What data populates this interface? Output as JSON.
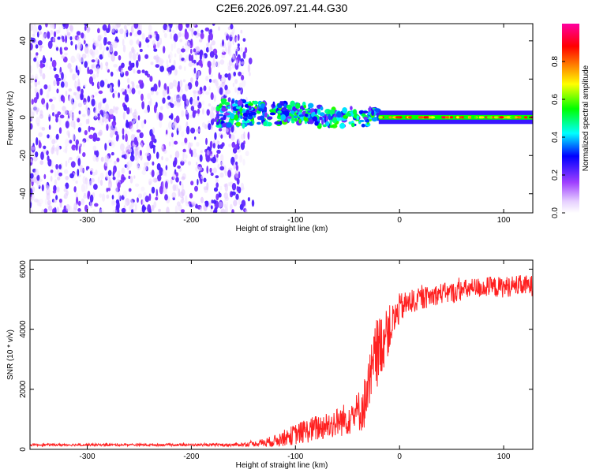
{
  "title": "C2E6.2026.097.21.44.G30",
  "chart_data": [
    {
      "type": "heatmap",
      "xlabel": "Height of straight line (km)",
      "ylabel": "Frequency (Hz)",
      "xlim": [
        -355,
        128
      ],
      "ylim": [
        -50,
        49
      ],
      "xticks": [
        -300,
        -200,
        -100,
        0,
        100
      ],
      "yticks": [
        -40,
        -20,
        0,
        20,
        40
      ],
      "colorbar": {
        "label": "Normalized spectral amplitude",
        "ticks": [
          "0.0",
          "0.2",
          "0.4",
          "0.6",
          "0.8"
        ],
        "range": [
          0,
          1
        ],
        "colors": [
          "#ffffff",
          "#e6d0ff",
          "#a040ff",
          "#0000ff",
          "#00ffff",
          "#00ff00",
          "#ffff00",
          "#ff8000",
          "#ff0000",
          "#ff00a0"
        ]
      },
      "regions": [
        {
          "name": "noise",
          "x_range": [
            -355,
            -140
          ],
          "freq_range": [
            -50,
            49
          ],
          "amplitude": 0.1
        },
        {
          "name": "signal-onset",
          "x_range": [
            -175,
            -20
          ],
          "freq_center": 2,
          "freq_halfwidth": 6,
          "amplitude": 0.45
        },
        {
          "name": "steady-signal",
          "x_range": [
            -20,
            128
          ],
          "freq_center": 0,
          "freq_halfwidth": 2,
          "amplitude": 0.9
        }
      ]
    },
    {
      "type": "line",
      "xlabel": "Height of straight line (km)",
      "ylabel": "SNR (10 * v/v)",
      "xlim": [
        -355,
        128
      ],
      "ylim": [
        0,
        6300
      ],
      "xticks": [
        -300,
        -200,
        -100,
        0,
        100
      ],
      "yticks": [
        0,
        2000,
        4000,
        6000
      ],
      "color": "#ff2020",
      "series": [
        {
          "name": "SNR",
          "x": [
            -355,
            -300,
            -250,
            -200,
            -160,
            -140,
            -120,
            -100,
            -80,
            -60,
            -45,
            -35,
            -28,
            -22,
            -15,
            -10,
            -5,
            0,
            10,
            20,
            30,
            40,
            50,
            60,
            70,
            80,
            90,
            100,
            110,
            120,
            128
          ],
          "y": [
            150,
            150,
            150,
            150,
            150,
            180,
            280,
            500,
            700,
            900,
            1100,
            1400,
            2200,
            3200,
            3700,
            4000,
            4300,
            4700,
            4900,
            5000,
            5100,
            5200,
            5200,
            5300,
            5350,
            5400,
            5400,
            5400,
            5450,
            5450,
            5450
          ],
          "noise_amplitude": [
            40,
            40,
            40,
            40,
            50,
            80,
            200,
            350,
            450,
            500,
            600,
            800,
            1200,
            1200,
            1000,
            800,
            600,
            500,
            400,
            380,
            350,
            350,
            350,
            350,
            350,
            350,
            350,
            350,
            350,
            350,
            350
          ]
        }
      ]
    }
  ]
}
